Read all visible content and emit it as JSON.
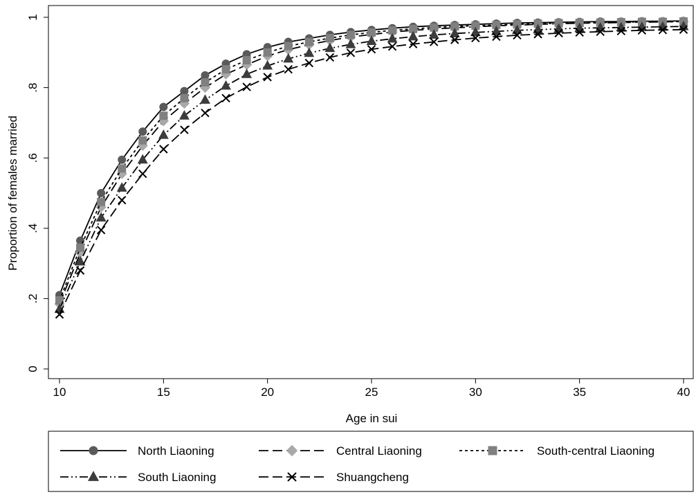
{
  "chart_data": {
    "type": "line",
    "title": "",
    "xlabel": "Age in sui",
    "ylabel": "Proportion of females married",
    "xlim": [
      10,
      40
    ],
    "ylim": [
      0,
      1
    ],
    "x_ticks": [
      10,
      15,
      20,
      25,
      30,
      35,
      40
    ],
    "y_ticks": [
      0,
      0.2,
      0.4,
      0.6,
      0.8,
      1
    ],
    "y_tick_labels": [
      "0",
      ".2",
      ".4",
      ".6",
      ".8",
      "1"
    ],
    "grid": false,
    "legend_position": "bottom",
    "x": [
      10,
      11,
      12,
      13,
      14,
      15,
      16,
      17,
      18,
      19,
      20,
      21,
      22,
      23,
      24,
      25,
      26,
      27,
      28,
      29,
      30,
      31,
      32,
      33,
      34,
      35,
      36,
      37,
      38,
      39,
      40
    ],
    "series": [
      {
        "name": "North Liaoning",
        "color": "#5a5a5a",
        "marker": "circle",
        "dash": "solid",
        "values": [
          0.21,
          0.365,
          0.5,
          0.595,
          0.675,
          0.745,
          0.79,
          0.835,
          0.868,
          0.895,
          0.915,
          0.93,
          0.94,
          0.95,
          0.958,
          0.964,
          0.969,
          0.973,
          0.976,
          0.978,
          0.98,
          0.982,
          0.984,
          0.985,
          0.986,
          0.987,
          0.988,
          0.988,
          0.989,
          0.989,
          0.99
        ]
      },
      {
        "name": "Central Liaoning",
        "color": "#a9a9a9",
        "marker": "diamond",
        "dash": "longdash",
        "values": [
          0.185,
          0.33,
          0.46,
          0.555,
          0.635,
          0.705,
          0.755,
          0.8,
          0.838,
          0.865,
          0.89,
          0.908,
          0.922,
          0.934,
          0.944,
          0.951,
          0.958,
          0.963,
          0.967,
          0.97,
          0.973,
          0.976,
          0.978,
          0.98,
          0.982,
          0.983,
          0.984,
          0.985,
          0.986,
          0.987,
          0.988
        ]
      },
      {
        "name": "South-central Liaoning",
        "color": "#808080",
        "marker": "square",
        "dash": "shortdash",
        "values": [
          0.195,
          0.345,
          0.475,
          0.57,
          0.65,
          0.72,
          0.77,
          0.815,
          0.852,
          0.878,
          0.9,
          0.918,
          0.93,
          0.941,
          0.95,
          0.957,
          0.963,
          0.967,
          0.971,
          0.974,
          0.976,
          0.978,
          0.98,
          0.982,
          0.983,
          0.984,
          0.985,
          0.986,
          0.987,
          0.987,
          0.988
        ]
      },
      {
        "name": "South Liaoning",
        "color": "#3c3c3c",
        "marker": "triangle",
        "dash": "dashdotdot",
        "values": [
          0.17,
          0.305,
          0.43,
          0.515,
          0.595,
          0.665,
          0.72,
          0.765,
          0.805,
          0.838,
          0.862,
          0.882,
          0.898,
          0.912,
          0.923,
          0.932,
          0.939,
          0.945,
          0.95,
          0.954,
          0.957,
          0.96,
          0.963,
          0.965,
          0.967,
          0.969,
          0.97,
          0.971,
          0.972,
          0.973,
          0.974
        ]
      },
      {
        "name": "Shuangcheng",
        "color": "#000000",
        "marker": "x",
        "dash": "longdash",
        "values": [
          0.155,
          0.28,
          0.395,
          0.48,
          0.555,
          0.625,
          0.68,
          0.728,
          0.77,
          0.802,
          0.83,
          0.852,
          0.87,
          0.886,
          0.899,
          0.909,
          0.917,
          0.924,
          0.93,
          0.936,
          0.941,
          0.945,
          0.949,
          0.952,
          0.955,
          0.957,
          0.959,
          0.961,
          0.963,
          0.964,
          0.965
        ]
      }
    ]
  }
}
